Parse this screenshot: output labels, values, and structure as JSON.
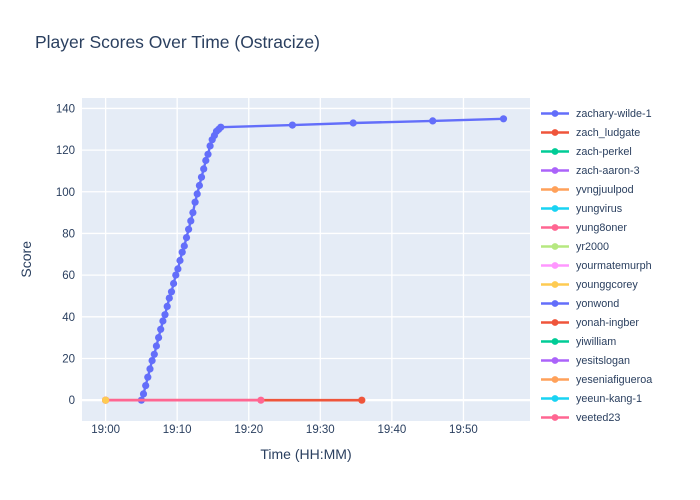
{
  "chart_data": {
    "type": "line",
    "title": "Player Scores Over Time (Ostracize)",
    "xlabel": "Time (HH:MM)",
    "ylabel": "Score",
    "x_tick_labels": [
      "19:00",
      "19:10",
      "19:20",
      "19:30",
      "19:40",
      "19:50"
    ],
    "x_tick_minutes": [
      0,
      10,
      20,
      30,
      40,
      50
    ],
    "y_ticks": [
      0,
      20,
      40,
      60,
      80,
      100,
      120,
      140
    ],
    "x_axis_unit": "minutes after 19:00",
    "xlim_minutes": [
      -3.3,
      59.3
    ],
    "ylim": [
      -10,
      145
    ],
    "plot_bg": "#e5ecf6",
    "grid_color": "#ffffff",
    "text_color": "#2a3f5f",
    "legend_position": "right",
    "series": [
      {
        "name": "zachary-wilde-1",
        "color": "#636efa",
        "line_width": 2.4,
        "points": [
          [
            5,
            0
          ],
          [
            5.3,
            3
          ],
          [
            5.6,
            7
          ],
          [
            5.9,
            11
          ],
          [
            6.2,
            15
          ],
          [
            6.5,
            19
          ],
          [
            6.8,
            22
          ],
          [
            7.1,
            26
          ],
          [
            7.4,
            30
          ],
          [
            7.7,
            34
          ],
          [
            8,
            38
          ],
          [
            8.3,
            41
          ],
          [
            8.6,
            45
          ],
          [
            8.9,
            49
          ],
          [
            9.2,
            52
          ],
          [
            9.5,
            56
          ],
          [
            9.8,
            60
          ],
          [
            10.1,
            63
          ],
          [
            10.4,
            67
          ],
          [
            10.7,
            71
          ],
          [
            11,
            74
          ],
          [
            11.3,
            78
          ],
          [
            11.6,
            82
          ],
          [
            11.9,
            86
          ],
          [
            12.2,
            90
          ],
          [
            12.5,
            95
          ],
          [
            12.8,
            99
          ],
          [
            13.1,
            103
          ],
          [
            13.4,
            107
          ],
          [
            13.7,
            111
          ],
          [
            14,
            115
          ],
          [
            14.3,
            118
          ],
          [
            14.6,
            122
          ],
          [
            14.9,
            125
          ],
          [
            15.2,
            127
          ],
          [
            15.5,
            129
          ],
          [
            15.8,
            130
          ],
          [
            16.1,
            131
          ],
          [
            26.1,
            132
          ],
          [
            34.6,
            133
          ],
          [
            45.7,
            134
          ],
          [
            55.6,
            135
          ]
        ]
      },
      {
        "name": "zach_ludgate",
        "color": "#ef553b",
        "line_width": 2.6,
        "points": [
          [
            0,
            0
          ],
          [
            35.8,
            0
          ]
        ]
      },
      {
        "name": "zach-perkel",
        "color": "#00cc96",
        "points": []
      },
      {
        "name": "zach-aaron-3",
        "color": "#ab63fa",
        "points": []
      },
      {
        "name": "yvngjuulpod",
        "color": "#ffa15a",
        "points": []
      },
      {
        "name": "yungvirus",
        "color": "#19d3f3",
        "points": []
      },
      {
        "name": "yung8oner",
        "color": "#ff6692",
        "line_width": 2.6,
        "points": [
          [
            0,
            0
          ],
          [
            21.7,
            0
          ]
        ]
      },
      {
        "name": "yr2000",
        "color": "#b6e880",
        "points": []
      },
      {
        "name": "yourmatemurph",
        "color": "#ff97ff",
        "points": []
      },
      {
        "name": "younggcorey",
        "color": "#fecb52",
        "points": [
          [
            0,
            0
          ]
        ]
      },
      {
        "name": "yonwond",
        "color": "#636efa",
        "points": []
      },
      {
        "name": "yonah-ingber",
        "color": "#ef553b",
        "points": []
      },
      {
        "name": "yiwilliam",
        "color": "#00cc96",
        "points": []
      },
      {
        "name": "yesitslogan",
        "color": "#ab63fa",
        "points": []
      },
      {
        "name": "yeseniafigueroa",
        "color": "#ffa15a",
        "points": []
      },
      {
        "name": "yeeun-kang-1",
        "color": "#19d3f3",
        "points": []
      },
      {
        "name": "yeeted23",
        "color": "#ff6692",
        "points": []
      }
    ]
  }
}
